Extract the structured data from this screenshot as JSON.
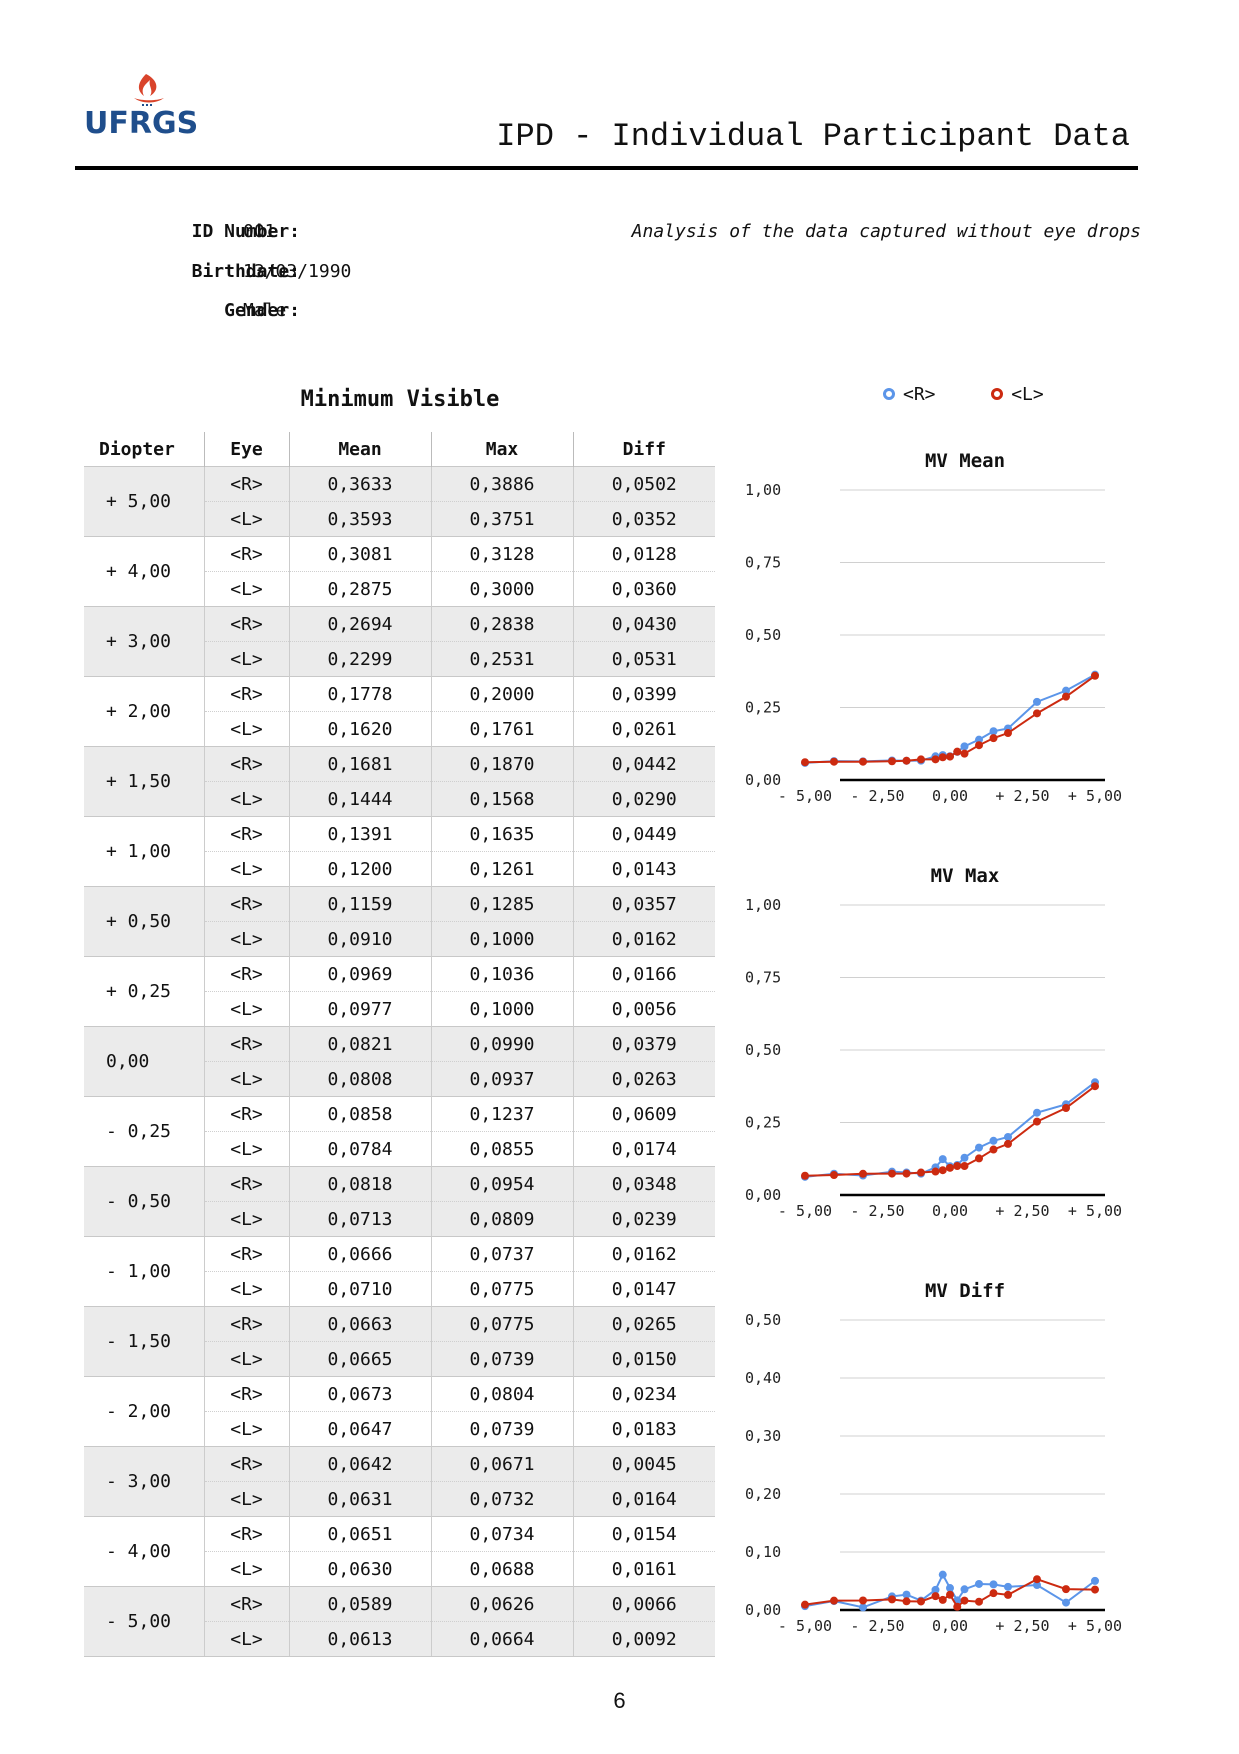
{
  "header": {
    "logo_text": "UFRGS",
    "title": "IPD - Individual Participant Data"
  },
  "participant": {
    "id_label": "ID Number:",
    "id_value": "001",
    "birth_label": "Birthdate:",
    "birth_value": "13/03/1990",
    "gender_label": "Gender:",
    "gender_value": "Male",
    "analysis_note": "Analysis of the data captured without eye drops"
  },
  "table": {
    "title": "Minimum Visible",
    "columns": [
      "Diopter",
      "Eye",
      "Mean",
      "Max",
      "Diff"
    ],
    "rows": [
      {
        "diopter": "+ 5,00",
        "r": [
          "0,3633",
          "0,3886",
          "0,0502"
        ],
        "l": [
          "0,3593",
          "0,3751",
          "0,0352"
        ]
      },
      {
        "diopter": "+ 4,00",
        "r": [
          "0,3081",
          "0,3128",
          "0,0128"
        ],
        "l": [
          "0,2875",
          "0,3000",
          "0,0360"
        ]
      },
      {
        "diopter": "+ 3,00",
        "r": [
          "0,2694",
          "0,2838",
          "0,0430"
        ],
        "l": [
          "0,2299",
          "0,2531",
          "0,0531"
        ]
      },
      {
        "diopter": "+ 2,00",
        "r": [
          "0,1778",
          "0,2000",
          "0,0399"
        ],
        "l": [
          "0,1620",
          "0,1761",
          "0,0261"
        ]
      },
      {
        "diopter": "+ 1,50",
        "r": [
          "0,1681",
          "0,1870",
          "0,0442"
        ],
        "l": [
          "0,1444",
          "0,1568",
          "0,0290"
        ]
      },
      {
        "diopter": "+ 1,00",
        "r": [
          "0,1391",
          "0,1635",
          "0,0449"
        ],
        "l": [
          "0,1200",
          "0,1261",
          "0,0143"
        ]
      },
      {
        "diopter": "+ 0,50",
        "r": [
          "0,1159",
          "0,1285",
          "0,0357"
        ],
        "l": [
          "0,0910",
          "0,1000",
          "0,0162"
        ]
      },
      {
        "diopter": "+ 0,25",
        "r": [
          "0,0969",
          "0,1036",
          "0,0166"
        ],
        "l": [
          "0,0977",
          "0,1000",
          "0,0056"
        ]
      },
      {
        "diopter": "0,00",
        "r": [
          "0,0821",
          "0,0990",
          "0,0379"
        ],
        "l": [
          "0,0808",
          "0,0937",
          "0,0263"
        ]
      },
      {
        "diopter": "- 0,25",
        "r": [
          "0,0858",
          "0,1237",
          "0,0609"
        ],
        "l": [
          "0,0784",
          "0,0855",
          "0,0174"
        ]
      },
      {
        "diopter": "- 0,50",
        "r": [
          "0,0818",
          "0,0954",
          "0,0348"
        ],
        "l": [
          "0,0713",
          "0,0809",
          "0,0239"
        ]
      },
      {
        "diopter": "- 1,00",
        "r": [
          "0,0666",
          "0,0737",
          "0,0162"
        ],
        "l": [
          "0,0710",
          "0,0775",
          "0,0147"
        ]
      },
      {
        "diopter": "- 1,50",
        "r": [
          "0,0663",
          "0,0775",
          "0,0265"
        ],
        "l": [
          "0,0665",
          "0,0739",
          "0,0150"
        ]
      },
      {
        "diopter": "- 2,00",
        "r": [
          "0,0673",
          "0,0804",
          "0,0234"
        ],
        "l": [
          "0,0647",
          "0,0739",
          "0,0183"
        ]
      },
      {
        "diopter": "- 3,00",
        "r": [
          "0,0642",
          "0,0671",
          "0,0045"
        ],
        "l": [
          "0,0631",
          "0,0732",
          "0,0164"
        ]
      },
      {
        "diopter": "- 4,00",
        "r": [
          "0,0651",
          "0,0734",
          "0,0154"
        ],
        "l": [
          "0,0630",
          "0,0688",
          "0,0161"
        ]
      },
      {
        "diopter": "- 5,00",
        "r": [
          "0,0589",
          "0,0626",
          "0,0066"
        ],
        "l": [
          "0,0613",
          "0,0664",
          "0,0092"
        ]
      }
    ],
    "eye_r_label": "<R>",
    "eye_l_label": "<L>"
  },
  "legend": {
    "r_label": "<R>",
    "l_label": "<L>"
  },
  "colors": {
    "r": "#5b95e9",
    "l": "#cc2a10",
    "shade": "#ebebeb",
    "logo": "#1f4e8c",
    "flame": "#d9442b"
  },
  "chart_data": [
    {
      "type": "line",
      "title": "MV Mean",
      "x": [
        -5,
        -4,
        -3,
        -2,
        -1.5,
        -1,
        -0.5,
        -0.25,
        0,
        0.25,
        0.5,
        1,
        1.5,
        2,
        3,
        4,
        5
      ],
      "xticks": [
        "- 5,00",
        "- 2,50",
        "0,00",
        "+ 2,50",
        "+ 5,00"
      ],
      "yticks": [
        "0,00",
        "0,25",
        "0,50",
        "0,75",
        "1,00"
      ],
      "ylim": [
        0,
        1
      ],
      "series": [
        {
          "name": "<R>",
          "values": [
            0.0589,
            0.0651,
            0.0642,
            0.0673,
            0.0663,
            0.0666,
            0.0818,
            0.0858,
            0.0821,
            0.0969,
            0.1159,
            0.1391,
            0.1681,
            0.1778,
            0.2694,
            0.3081,
            0.3633
          ]
        },
        {
          "name": "<L>",
          "values": [
            0.0613,
            0.063,
            0.0631,
            0.0647,
            0.0665,
            0.071,
            0.0713,
            0.0784,
            0.0808,
            0.0977,
            0.091,
            0.12,
            0.1444,
            0.162,
            0.2299,
            0.2875,
            0.3593
          ]
        }
      ]
    },
    {
      "type": "line",
      "title": "MV Max",
      "x": [
        -5,
        -4,
        -3,
        -2,
        -1.5,
        -1,
        -0.5,
        -0.25,
        0,
        0.25,
        0.5,
        1,
        1.5,
        2,
        3,
        4,
        5
      ],
      "xticks": [
        "- 5,00",
        "- 2,50",
        "0,00",
        "+ 2,50",
        "+ 5,00"
      ],
      "yticks": [
        "0,00",
        "0,25",
        "0,50",
        "0,75",
        "1,00"
      ],
      "ylim": [
        0,
        1
      ],
      "series": [
        {
          "name": "<R>",
          "values": [
            0.0626,
            0.0734,
            0.0671,
            0.0804,
            0.0775,
            0.0737,
            0.0954,
            0.1237,
            0.099,
            0.1036,
            0.1285,
            0.1635,
            0.187,
            0.2,
            0.2838,
            0.3128,
            0.3886
          ]
        },
        {
          "name": "<L>",
          "values": [
            0.0664,
            0.0688,
            0.0732,
            0.0739,
            0.0739,
            0.0775,
            0.0809,
            0.0855,
            0.0937,
            0.1,
            0.1,
            0.1261,
            0.1568,
            0.1761,
            0.2531,
            0.3,
            0.3751
          ]
        }
      ]
    },
    {
      "type": "line",
      "title": "MV Diff",
      "x": [
        -5,
        -4,
        -3,
        -2,
        -1.5,
        -1,
        -0.5,
        -0.25,
        0,
        0.25,
        0.5,
        1,
        1.5,
        2,
        3,
        4,
        5
      ],
      "xticks": [
        "- 5,00",
        "- 2,50",
        "0,00",
        "+ 2,50",
        "+ 5,00"
      ],
      "yticks": [
        "0,00",
        "0,10",
        "0,20",
        "0,30",
        "0,40",
        "0,50"
      ],
      "ylim": [
        0,
        0.5
      ],
      "series": [
        {
          "name": "<R>",
          "values": [
            0.0066,
            0.0154,
            0.0045,
            0.0234,
            0.0265,
            0.0162,
            0.0348,
            0.0609,
            0.0379,
            0.0166,
            0.0357,
            0.0449,
            0.0442,
            0.0399,
            0.043,
            0.0128,
            0.0502
          ]
        },
        {
          "name": "<L>",
          "values": [
            0.0092,
            0.0161,
            0.0164,
            0.0183,
            0.015,
            0.0147,
            0.0239,
            0.0174,
            0.0263,
            0.0056,
            0.0162,
            0.0143,
            0.029,
            0.0261,
            0.0531,
            0.036,
            0.0352
          ]
        }
      ]
    }
  ],
  "page": {
    "number": "6"
  }
}
